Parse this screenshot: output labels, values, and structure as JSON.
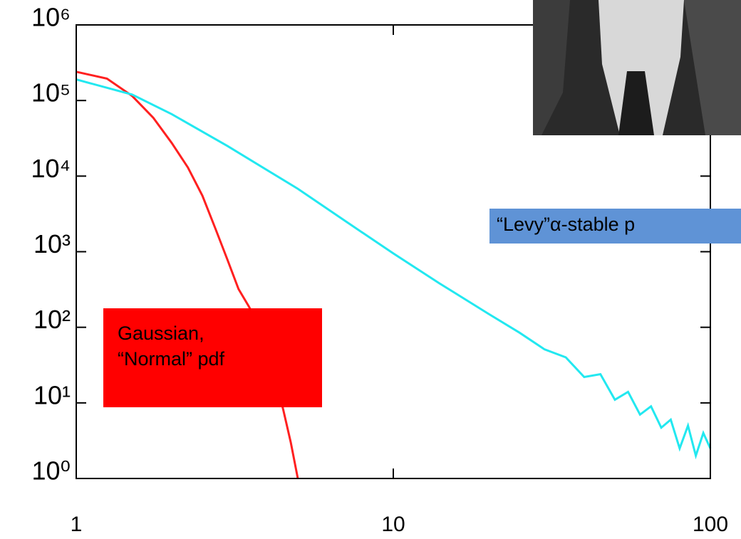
{
  "chart_data": {
    "type": "line",
    "xscale": "log",
    "yscale": "log",
    "xlim": [
      1,
      100
    ],
    "xticks": [
      1,
      10,
      100
    ],
    "ylim": [
      1,
      1000000
    ],
    "yticks": [
      {
        "value": 1,
        "label": "10⁰"
      },
      {
        "value": 10,
        "label": "10¹"
      },
      {
        "value": 100,
        "label": "10²"
      },
      {
        "value": 1000,
        "label": "10³"
      },
      {
        "value": 10000,
        "label": "10⁴"
      },
      {
        "value": 100000,
        "label": "10⁵"
      },
      {
        "value": 1000000,
        "label": "10⁶"
      }
    ],
    "series": [
      {
        "color": "#ff2020",
        "x": [
          1,
          1.25,
          1.5,
          1.75,
          2,
          2.25,
          2.5,
          2.75,
          3,
          3.25,
          3.5,
          3.75,
          4,
          4.25,
          4.5,
          4.75,
          5
        ],
        "values": [
          240000,
          195000,
          115000,
          59000,
          27500,
          13000,
          5500,
          2000,
          780,
          320,
          190,
          110,
          51,
          21,
          8,
          3,
          1
        ]
      },
      {
        "color": "#22e8f0",
        "x": [
          1,
          1.5,
          2,
          3,
          5,
          7,
          10,
          14,
          20,
          25,
          30,
          35,
          40,
          45,
          50,
          55,
          60,
          65,
          70,
          75,
          80,
          85,
          90,
          95,
          100
        ],
        "values": [
          190000,
          120000,
          66000,
          25000,
          6800,
          2600,
          950,
          380,
          150,
          85,
          51,
          40,
          22,
          24,
          11,
          14,
          7,
          9,
          4.7,
          6,
          2.5,
          5,
          2,
          4,
          2.5
        ]
      }
    ],
    "annotations": [
      {
        "text": "Gaussian,\n“Normal” pdf",
        "color": "#ff0000"
      },
      {
        "text": "“Levy”α-stable p",
        "color": "#5f93d6"
      }
    ]
  }
}
